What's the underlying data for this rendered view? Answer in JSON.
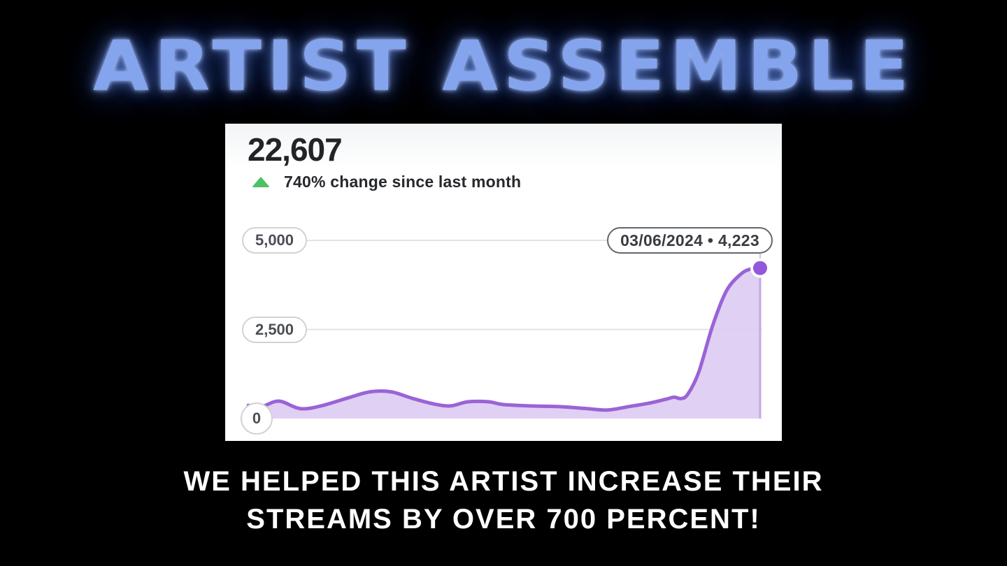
{
  "title": "ARTIST ASSEMBLE",
  "card": {
    "total_streams": "22,607",
    "change_text": "740% change since last month",
    "tooltip": "03/06/2024 • 4,223"
  },
  "caption": {
    "line1": "WE HELPED THIS ARTIST INCREASE THEIR",
    "line2": "STREAMS BY OVER 700 PERCENT!"
  },
  "colors": {
    "background": "#000000",
    "title_blue": "#85a4ee",
    "title_glow": "#4d79e6",
    "card_bg": "#ffffff",
    "text_dark": "#222528",
    "up_arrow_green": "#4cc264",
    "grid_gray": "#e3e3e3",
    "axis_pill_border": "#d2d2d2",
    "axis_text": "#4b4f55",
    "tooltip_border": "#63666b",
    "line_purple": "#9a63d6",
    "fill_purple": "#ddcbf2",
    "dot_purple": "#9557da",
    "hover_line_gray": "#cfcfcf",
    "hover_line_purple": "#c4a8e6"
  },
  "chart_data": {
    "type": "area",
    "headline_value": 22607,
    "change_percent_text": "740% change since last month",
    "ylim": [
      0,
      5000
    ],
    "yticks": [
      {
        "value": 0,
        "label": "0"
      },
      {
        "value": 2500,
        "label": "2,500"
      },
      {
        "value": 5000,
        "label": "5,000"
      }
    ],
    "x_axis_note": "time series over ~1 month, no x tick labels shown",
    "grid": "horizontal lines at 2,500 and 5,000",
    "legend": "none",
    "annotation": {
      "date": "03/06/2024",
      "value": 4223,
      "label": "03/06/2024 • 4,223",
      "position": "last point, marked with purple dot and vertical hover line"
    },
    "series": [
      {
        "name": "streams",
        "points_t_v": [
          [
            0.0,
            370
          ],
          [
            0.026,
            335
          ],
          [
            0.06,
            490
          ],
          [
            0.101,
            280
          ],
          [
            0.142,
            355
          ],
          [
            0.197,
            590
          ],
          [
            0.238,
            750
          ],
          [
            0.279,
            750
          ],
          [
            0.32,
            570
          ],
          [
            0.361,
            415
          ],
          [
            0.395,
            355
          ],
          [
            0.429,
            470
          ],
          [
            0.47,
            470
          ],
          [
            0.497,
            395
          ],
          [
            0.552,
            355
          ],
          [
            0.607,
            335
          ],
          [
            0.661,
            280
          ],
          [
            0.702,
            240
          ],
          [
            0.743,
            335
          ],
          [
            0.784,
            435
          ],
          [
            0.818,
            550
          ],
          [
            0.832,
            600
          ],
          [
            0.846,
            560
          ],
          [
            0.859,
            690
          ],
          [
            0.88,
            1300
          ],
          [
            0.907,
            2600
          ],
          [
            0.934,
            3580
          ],
          [
            0.962,
            4050
          ],
          [
            0.982,
            4200
          ],
          [
            1.0,
            4223
          ]
        ]
      }
    ]
  }
}
